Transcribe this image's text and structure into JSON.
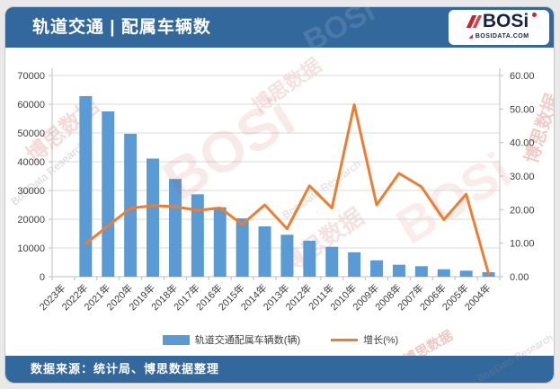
{
  "header": {
    "title": "轨道交通 | 配属车辆数",
    "logo": {
      "brand": "BOSi",
      "site": "BOSIDATA.COM"
    }
  },
  "footer": {
    "source": "数据来源：统计局、博思数据整理"
  },
  "watermark": {
    "cn": "博思数据",
    "en": "BosiData Research",
    "brand": "BOSi"
  },
  "colors": {
    "brand_blue": "#33689D",
    "bar": "#5B9BD5",
    "line": "#ED7D31",
    "grid": "#D9D9D9",
    "axis_line": "#BFBFBF",
    "axis_text": "#404040"
  },
  "chart_data": {
    "type": "bar",
    "subtype": "bar+line combo, dual axis",
    "categories": [
      "2023年",
      "2022年",
      "2021年",
      "2020年",
      "2019年",
      "2018年",
      "2017年",
      "2016年",
      "2015年",
      "2014年",
      "2013年",
      "2012年",
      "2011年",
      "2010年",
      "2009年",
      "2008年",
      "2007年",
      "2006年",
      "2005年",
      "2004年"
    ],
    "series": [
      {
        "name": "轨道交通配属车辆数(辆)",
        "type": "bar",
        "axis": "left",
        "values": [
          null,
          62800,
          57500,
          49700,
          41100,
          34000,
          28650,
          24150,
          20300,
          17500,
          14600,
          12500,
          10400,
          8500,
          5700,
          4160,
          3650,
          2600,
          2100,
          1560
        ]
      },
      {
        "name": "增长(%)",
        "type": "line",
        "axis": "right",
        "values": [
          null,
          9.8,
          15.2,
          20.4,
          21.2,
          20.9,
          19.8,
          20.5,
          15.6,
          21.4,
          14.3,
          27.1,
          20.5,
          51.3,
          21.4,
          30.8,
          26.8,
          17.0,
          24.6,
          0.9
        ]
      }
    ],
    "left_axis": {
      "min": 0,
      "max": 70000,
      "step": 10000,
      "ticks": [
        "0",
        "10000",
        "20000",
        "30000",
        "40000",
        "50000",
        "60000",
        "70000"
      ]
    },
    "right_axis": {
      "min": 0,
      "max": 60,
      "step": 10,
      "ticks": [
        "0.00",
        "10.00",
        "20.00",
        "30.00",
        "40.00",
        "50.00",
        "60.00"
      ]
    },
    "grid": true,
    "legend_position": "bottom",
    "x_label_rotation": -45
  }
}
